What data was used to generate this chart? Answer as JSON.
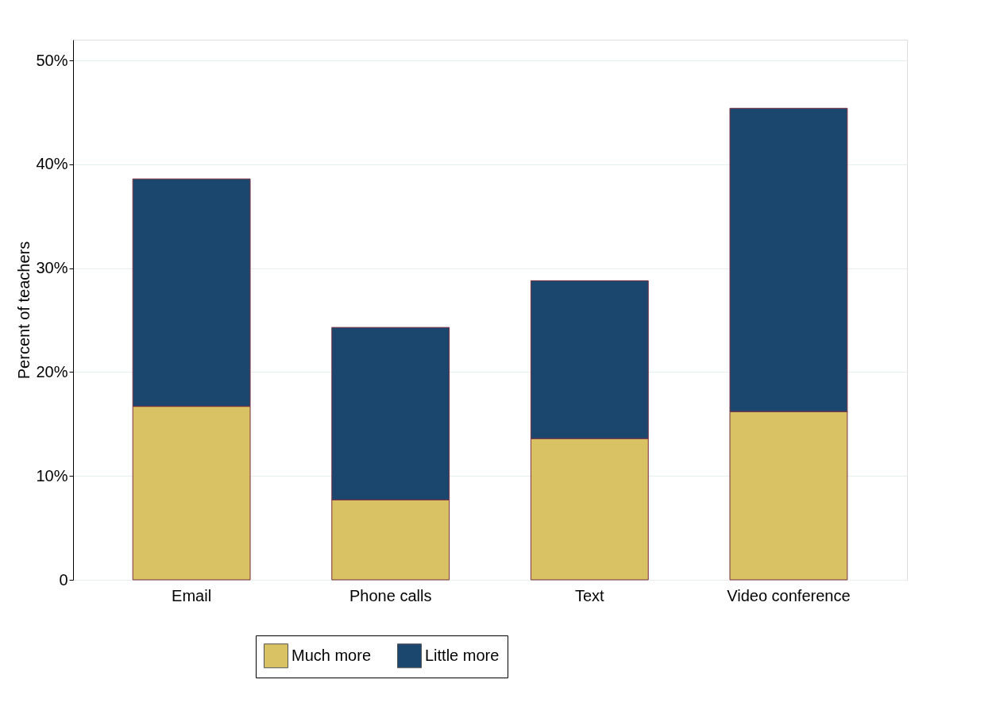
{
  "chart_data": {
    "type": "bar",
    "stacked": true,
    "ylabel": "Percent of teachers",
    "categories": [
      "Email",
      "Phone calls",
      "Text",
      "Video conference"
    ],
    "series": [
      {
        "name": "Much more",
        "color": "#d8c263",
        "values": [
          16.7,
          7.7,
          13.6,
          16.2
        ]
      },
      {
        "name": "Little more",
        "color": "#1b466d",
        "values": [
          21.9,
          16.6,
          15.2,
          29.2
        ]
      }
    ],
    "ylim": [
      0,
      52
    ],
    "yticks": [
      {
        "value": 0,
        "label": "0"
      },
      {
        "value": 10,
        "label": "10%"
      },
      {
        "value": 20,
        "label": "20%"
      },
      {
        "value": 30,
        "label": "30%"
      },
      {
        "value": 40,
        "label": "40%"
      },
      {
        "value": 50,
        "label": "50%"
      }
    ],
    "grid": "y",
    "legend": "bottom"
  }
}
